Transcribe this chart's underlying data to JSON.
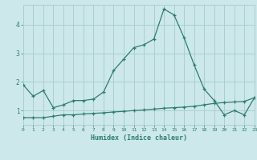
{
  "xlabel": "Humidex (Indice chaleur)",
  "x_values": [
    0,
    1,
    2,
    3,
    4,
    5,
    6,
    7,
    8,
    9,
    10,
    11,
    12,
    13,
    14,
    15,
    16,
    17,
    18,
    19,
    20,
    21,
    22,
    23
  ],
  "line1_y": [
    1.9,
    1.5,
    1.7,
    1.1,
    1.2,
    1.35,
    1.35,
    1.4,
    1.65,
    2.4,
    2.8,
    3.2,
    3.3,
    3.5,
    4.55,
    4.35,
    3.55,
    2.6,
    1.75,
    1.35,
    0.85,
    1.0,
    0.85,
    1.45
  ],
  "line2_y": [
    0.75,
    0.75,
    0.75,
    0.8,
    0.85,
    0.85,
    0.88,
    0.9,
    0.92,
    0.95,
    0.97,
    1.0,
    1.02,
    1.05,
    1.08,
    1.1,
    1.12,
    1.15,
    1.2,
    1.25,
    1.28,
    1.3,
    1.32,
    1.45
  ],
  "line_color": "#2e7d6e",
  "bg_color": "#cce8ea",
  "grid_color": "#aacfcf",
  "ylim": [
    0.5,
    4.7
  ],
  "yticks": [
    1,
    2,
    3,
    4
  ],
  "xlim": [
    0,
    23
  ]
}
